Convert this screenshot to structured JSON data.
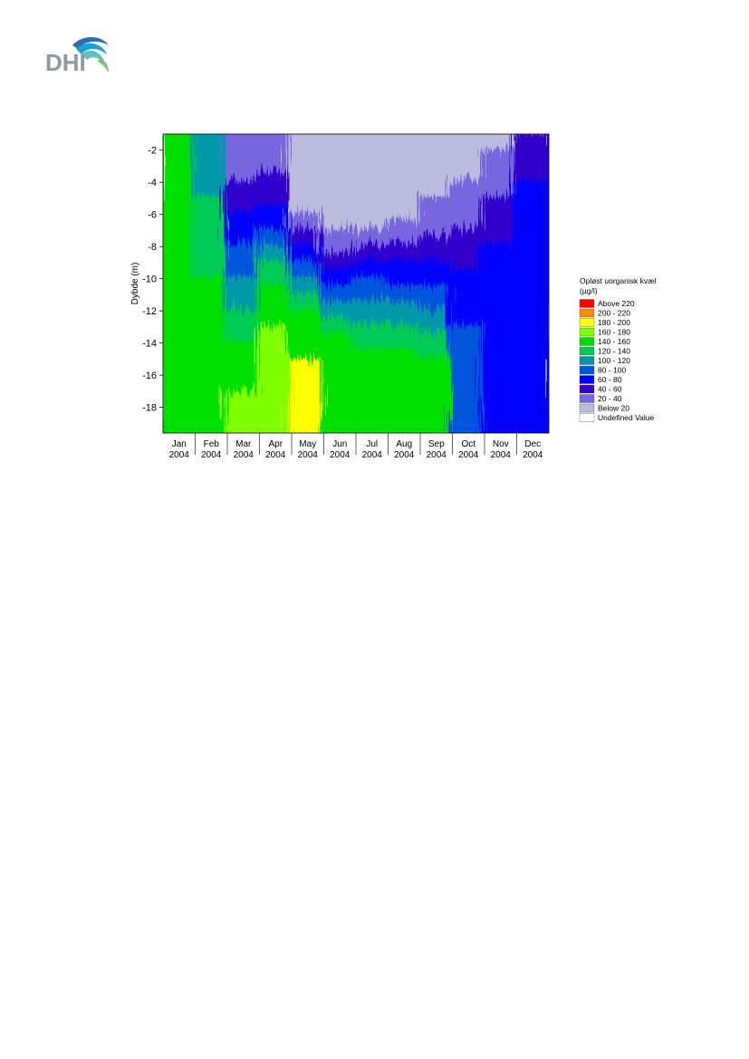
{
  "logo": {
    "text": "DHI",
    "colors": [
      "#1b9fd6",
      "#5cc1c0",
      "#7cc576",
      "#2a6fb5",
      "#8a9aa8"
    ]
  },
  "chart_data": {
    "type": "heatmap",
    "title": "",
    "xlabel": "",
    "ylabel": "Dybde (m)",
    "ylim": [
      -19.6,
      -1
    ],
    "yticks": [
      -2,
      -4,
      -6,
      -8,
      -10,
      -12,
      -14,
      -16,
      -18
    ],
    "x_categories": [
      {
        "month": "Jan",
        "year": "2004"
      },
      {
        "month": "Feb",
        "year": "2004"
      },
      {
        "month": "Mar",
        "year": "2004"
      },
      {
        "month": "Apr",
        "year": "2004"
      },
      {
        "month": "May",
        "year": "2004"
      },
      {
        "month": "Jun",
        "year": "2004"
      },
      {
        "month": "Jul",
        "year": "2004"
      },
      {
        "month": "Aug",
        "year": "2004"
      },
      {
        "month": "Sep",
        "year": "2004"
      },
      {
        "month": "Oct",
        "year": "2004"
      },
      {
        "month": "Nov",
        "year": "2004"
      },
      {
        "month": "Dec",
        "year": "2004"
      }
    ],
    "legend": {
      "title_lines": [
        "Opløst uorganisk kvæl",
        "(µg/l)"
      ],
      "placement": "right",
      "entries": [
        {
          "label": "Above 220",
          "color": "#ff0000"
        },
        {
          "label": "200 - 220",
          "color": "#ff8c00"
        },
        {
          "label": "180 - 200",
          "color": "#ffff00"
        },
        {
          "label": "160 - 180",
          "color": "#80ff00"
        },
        {
          "label": "140 - 160",
          "color": "#00e000"
        },
        {
          "label": "120 - 140",
          "color": "#00cc55"
        },
        {
          "label": "100 - 120",
          "color": "#0099aa"
        },
        {
          "label": "80 - 100",
          "color": "#0055dd"
        },
        {
          "label": "60 -  80",
          "color": "#0000ff"
        },
        {
          "label": "40 -  60",
          "color": "#3300cc"
        },
        {
          "label": "20 -  40",
          "color": "#7766dd"
        },
        {
          "label": "Below  20",
          "color": "#bbbbdd"
        },
        {
          "label": "Undefined Value",
          "color": "#ffffff"
        }
      ]
    },
    "monthly_profile": [
      {
        "month": "Jan",
        "below20_to": null,
        "band_20_40_to": null,
        "band_40_60_to": null,
        "band_60_80_to": null,
        "band_80_100_to": null,
        "band_100_120_to": null,
        "band_120_140_to": -1,
        "band_140_160_to": -7,
        "peak_class": "140 - 160"
      },
      {
        "month": "Feb",
        "below20_to": null,
        "band_20_40_to": null,
        "band_40_60_to": null,
        "band_60_80_to": null,
        "band_80_100_to": -1,
        "band_100_120_to": -6,
        "band_120_140_to": -11,
        "band_140_160_to": -16,
        "peak_class": "140 - 160"
      },
      {
        "month": "Mar",
        "below20_to": -1,
        "band_20_40_to": -5,
        "band_40_60_to": -7,
        "band_60_80_to": -9,
        "band_80_100_to": -11,
        "band_100_120_to": -13,
        "band_120_140_to": -15,
        "band_140_160_to": -17,
        "peak_class": "160 - 180"
      },
      {
        "month": "Apr",
        "below20_to": -1,
        "band_20_40_to": -4.5,
        "band_40_60_to": -6.5,
        "band_60_80_to": -8,
        "band_80_100_to": -9,
        "band_100_120_to": -10,
        "band_120_140_to": -11.5,
        "band_140_160_to": -13,
        "peak_class": "160 - 180"
      },
      {
        "month": "May",
        "below20_to": -7,
        "band_20_40_to": -8,
        "band_40_60_to": -9,
        "band_60_80_to": -10,
        "band_80_100_to": -11,
        "band_100_120_to": -12,
        "band_120_140_to": -13,
        "band_140_160_to": -15,
        "peak_class": "180 - 200"
      },
      {
        "month": "Jun",
        "below20_to": -8,
        "band_20_40_to": -9.5,
        "band_40_60_to": -10.5,
        "band_60_80_to": -11.5,
        "band_80_100_to": -12.5,
        "band_100_120_to": -13.5,
        "band_120_140_to": -14.5,
        "band_140_160_to": -16,
        "peak_class": "140 - 160"
      },
      {
        "month": "Jul",
        "below20_to": -8,
        "band_20_40_to": -9,
        "band_40_60_to": -10,
        "band_60_80_to": -11,
        "band_80_100_to": -12.5,
        "band_100_120_to": -14,
        "band_120_140_to": -15.5,
        "band_140_160_to": -17,
        "peak_class": "140 - 160"
      },
      {
        "month": "Aug",
        "below20_to": -7.5,
        "band_20_40_to": -9,
        "band_40_60_to": -10,
        "band_60_80_to": -11.5,
        "band_80_100_to": -12.5,
        "band_100_120_to": -14,
        "band_120_140_to": -15.5,
        "band_140_160_to": -17.5,
        "peak_class": "140 - 160"
      },
      {
        "month": "Sep",
        "below20_to": -6,
        "band_20_40_to": -8.5,
        "band_40_60_to": -10,
        "band_60_80_to": -11.5,
        "band_80_100_to": -13,
        "band_100_120_to": -14.5,
        "band_120_140_to": -16,
        "band_140_160_to": -18,
        "peak_class": "140 - 160"
      },
      {
        "month": "Oct",
        "below20_to": -5,
        "band_20_40_to": -8,
        "band_40_60_to": -10.5,
        "band_60_80_to": -14,
        "band_80_100_to": -16,
        "band_100_120_to": null,
        "band_120_140_to": null,
        "band_140_160_to": null,
        "peak_class": "80 - 100"
      },
      {
        "month": "Nov",
        "below20_to": -3,
        "band_20_40_to": -6,
        "band_40_60_to": -9,
        "band_60_80_to": -19.6,
        "band_80_100_to": null,
        "band_100_120_to": null,
        "band_120_140_to": null,
        "band_140_160_to": null,
        "peak_class": "60 -  80"
      },
      {
        "month": "Dec",
        "below20_to": null,
        "band_20_40_to": -2,
        "band_40_60_to": -5,
        "band_60_80_to": -19.6,
        "band_80_100_to": null,
        "band_100_120_to": null,
        "band_120_140_to": null,
        "band_140_160_to": null,
        "peak_class": "60 -  80"
      }
    ]
  }
}
